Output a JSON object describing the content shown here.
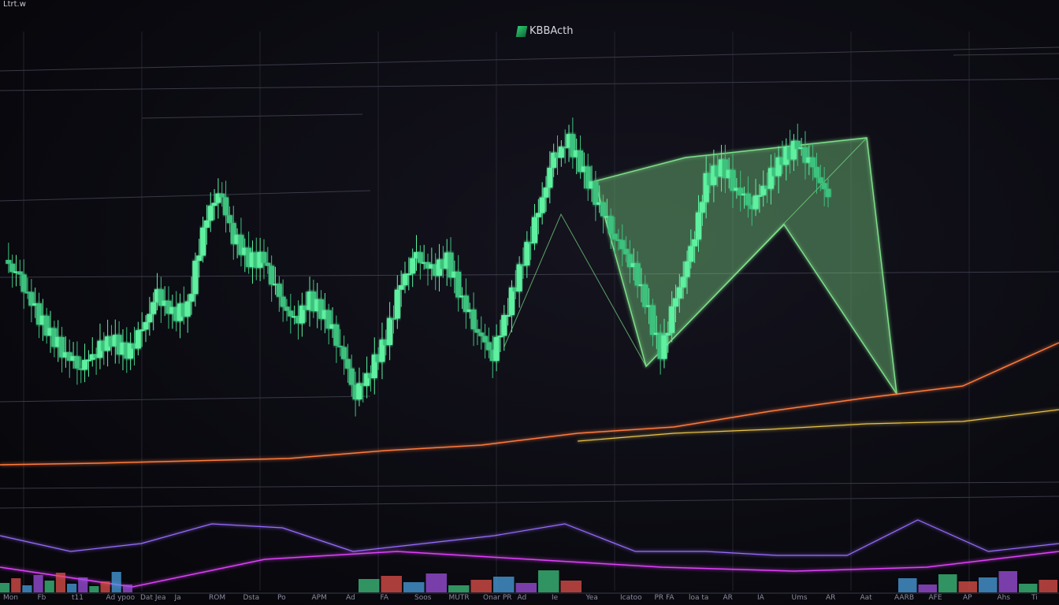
{
  "header": {
    "corner_label": "Ltrt.w",
    "brand": "KBBActh"
  },
  "chart_data": {
    "type": "candlestick",
    "title": "",
    "xlabel": "",
    "ylabel": "",
    "grid": true,
    "colors": {
      "up": "#5ef0a0",
      "down": "#3ec27e",
      "pattern": "#7ee08a",
      "orange": "#ff7a3c",
      "yellow": "#e8c24a",
      "purple": "#9a6cff",
      "magenta": "#e040fb",
      "background": "#0a0a12"
    },
    "price_close": [
      270,
      245,
      205,
      175,
      150,
      135,
      155,
      170,
      150,
      180,
      225,
      200,
      210,
      310,
      360,
      300,
      270,
      270,
      220,
      190,
      220,
      200,
      160,
      100,
      130,
      170,
      240,
      275,
      255,
      270,
      220,
      180,
      150,
      210,
      270,
      330,
      400,
      420,
      380,
      340,
      300,
      270,
      220,
      150,
      220,
      280,
      370,
      390,
      360,
      340,
      370,
      400,
      415,
      385,
      350
    ],
    "orange_line": [
      10,
      12,
      15,
      18,
      28,
      35,
      50,
      58,
      78,
      95,
      110,
      165
    ],
    "yellow_line": [
      null,
      null,
      null,
      null,
      null,
      null,
      20,
      30,
      35,
      42,
      45,
      60
    ],
    "purple_oscillator": [
      88,
      68,
      78,
      103,
      98,
      68,
      78,
      88,
      103,
      68,
      68,
      63,
      63,
      108,
      68,
      78
    ],
    "magenta_line": [
      48,
      23,
      58,
      68,
      58,
      48,
      43,
      48,
      68
    ],
    "volume": [
      12,
      18,
      9,
      22,
      15,
      25,
      11,
      19,
      8,
      14,
      26,
      10,
      17,
      21,
      13,
      24,
      9,
      16,
      20,
      12,
      28,
      15,
      18,
      10,
      23,
      14,
      19,
      27,
      11,
      16
    ],
    "x_tick_labels": [
      "Mon",
      "Fb",
      "t11",
      "Ad ypoo",
      "Dat Jea",
      "Ja",
      "ROM",
      "Dsta",
      "Po",
      "APM",
      "Ad",
      "FA",
      "Soos",
      "MUTR",
      "Onar PR",
      "Ad",
      "Ie",
      "Yea",
      "Icatoo",
      "PR FA",
      "loa ta",
      "AR",
      "IA",
      "Ums",
      "AR",
      "Aat",
      "AARB",
      "AFE",
      "AP",
      "Ahs",
      "Ti"
    ]
  }
}
